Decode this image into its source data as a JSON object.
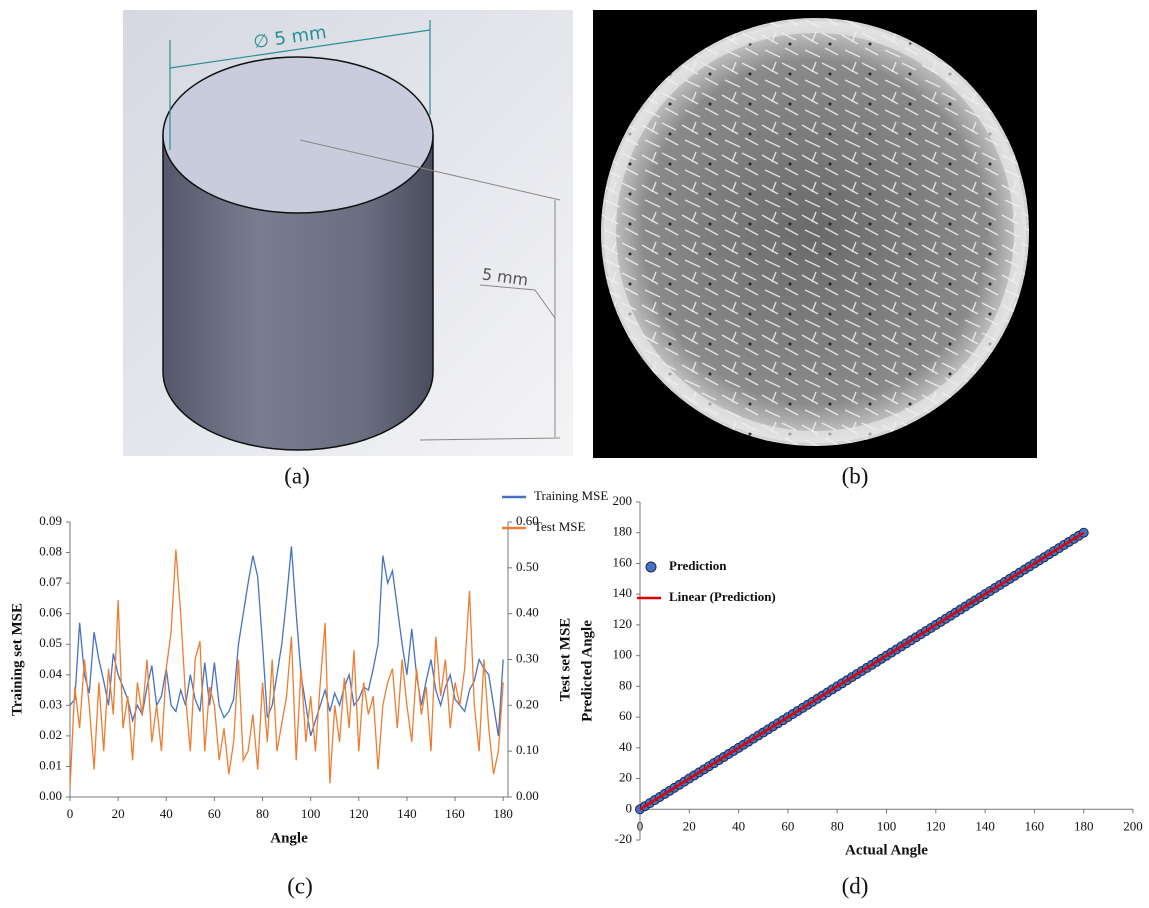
{
  "panels": [
    {
      "label": "(a)",
      "dimensions": [
        "∅ 5 mm",
        "5 mm"
      ]
    },
    {
      "label": "(b)"
    },
    {
      "label": "(c)"
    },
    {
      "label": "(d)"
    }
  ],
  "chart_data": [
    {
      "type": "line",
      "xlabel": "Angle",
      "ylabel": "Training set MSE",
      "y2label": "Test set MSE",
      "legend": "top-right",
      "xlim": [
        0,
        182
      ],
      "xticks": [
        0,
        20,
        40,
        60,
        80,
        100,
        120,
        140,
        160,
        180
      ],
      "ylim": [
        0,
        0.09
      ],
      "yticks": [
        {
          "value": 0,
          "label": "0.00"
        },
        {
          "value": 0.01,
          "label": "0.01"
        },
        {
          "value": 0.02,
          "label": "0.02"
        },
        {
          "value": 0.03,
          "label": "0.03"
        },
        {
          "value": 0.04,
          "label": "0.04"
        },
        {
          "value": 0.05,
          "label": "0.05"
        },
        {
          "value": 0.06,
          "label": "0.06"
        },
        {
          "value": 0.07,
          "label": "0.07"
        },
        {
          "value": 0.08,
          "label": "0.08"
        },
        {
          "value": 0.09,
          "label": "0.09"
        }
      ],
      "y2lim": [
        0,
        0.6
      ],
      "y2ticks": [
        {
          "value": 0,
          "label": "0.00"
        },
        {
          "value": 0.1,
          "label": "0.10"
        },
        {
          "value": 0.2,
          "label": "0.20"
        },
        {
          "value": 0.3,
          "label": "0.30"
        },
        {
          "value": 0.4,
          "label": "0.40"
        },
        {
          "value": 0.5,
          "label": "0.50"
        },
        {
          "value": 0.6,
          "label": "0.60"
        }
      ],
      "x": [
        0,
        2,
        4,
        6,
        8,
        10,
        12,
        14,
        16,
        18,
        20,
        22,
        24,
        26,
        28,
        30,
        32,
        34,
        36,
        38,
        40,
        42,
        44,
        46,
        48,
        50,
        52,
        54,
        56,
        58,
        60,
        62,
        64,
        66,
        68,
        70,
        72,
        74,
        76,
        78,
        80,
        82,
        84,
        86,
        88,
        90,
        92,
        94,
        96,
        98,
        100,
        102,
        104,
        106,
        108,
        110,
        112,
        114,
        116,
        118,
        120,
        122,
        124,
        126,
        128,
        130,
        132,
        134,
        136,
        138,
        140,
        142,
        144,
        146,
        148,
        150,
        152,
        154,
        156,
        158,
        160,
        162,
        164,
        166,
        168,
        170,
        172,
        174,
        176,
        178,
        180
      ],
      "series": [
        {
          "name": "Training MSE",
          "color": "#4472c4",
          "values": [
            0.03,
            0.032,
            0.057,
            0.04,
            0.034,
            0.054,
            0.045,
            0.038,
            0.03,
            0.047,
            0.04,
            0.036,
            0.032,
            0.025,
            0.03,
            0.027,
            0.036,
            0.043,
            0.03,
            0.033,
            0.042,
            0.03,
            0.028,
            0.035,
            0.03,
            0.04,
            0.032,
            0.028,
            0.044,
            0.03,
            0.044,
            0.03,
            0.026,
            0.028,
            0.032,
            0.05,
            0.06,
            0.07,
            0.079,
            0.072,
            0.05,
            0.026,
            0.03,
            0.04,
            0.05,
            0.065,
            0.082,
            0.06,
            0.04,
            0.03,
            0.02,
            0.025,
            0.03,
            0.035,
            0.028,
            0.034,
            0.03,
            0.036,
            0.04,
            0.03,
            0.032,
            0.036,
            0.035,
            0.042,
            0.05,
            0.079,
            0.07,
            0.074,
            0.062,
            0.05,
            0.04,
            0.055,
            0.04,
            0.03,
            0.038,
            0.045,
            0.035,
            0.03,
            0.036,
            0.04,
            0.032,
            0.03,
            0.028,
            0.035,
            0.038,
            0.045,
            0.042,
            0.04,
            0.03,
            0.02,
            0.045
          ]
        },
        {
          "name": "Test MSE",
          "color": "#ed7d31",
          "axis": "y2",
          "values": [
            0.02,
            0.24,
            0.15,
            0.3,
            0.2,
            0.06,
            0.25,
            0.1,
            0.28,
            0.18,
            0.43,
            0.15,
            0.22,
            0.08,
            0.25,
            0.18,
            0.3,
            0.12,
            0.2,
            0.1,
            0.28,
            0.36,
            0.54,
            0.4,
            0.22,
            0.1,
            0.3,
            0.34,
            0.1,
            0.24,
            0.2,
            0.08,
            0.15,
            0.05,
            0.12,
            0.3,
            0.08,
            0.1,
            0.18,
            0.06,
            0.25,
            0.12,
            0.3,
            0.1,
            0.16,
            0.22,
            0.35,
            0.08,
            0.28,
            0.12,
            0.22,
            0.1,
            0.25,
            0.38,
            0.03,
            0.2,
            0.12,
            0.26,
            0.15,
            0.32,
            0.1,
            0.25,
            0.18,
            0.22,
            0.06,
            0.2,
            0.25,
            0.28,
            0.15,
            0.3,
            0.2,
            0.12,
            0.28,
            0.18,
            0.24,
            0.1,
            0.35,
            0.22,
            0.3,
            0.15,
            0.25,
            0.2,
            0.28,
            0.45,
            0.2,
            0.1,
            0.3,
            0.15,
            0.05,
            0.1,
            0.25
          ]
        }
      ]
    },
    {
      "type": "scatter",
      "xlabel": "Actual Angle",
      "ylabel": "Predicted Angle",
      "legend": "top-left",
      "xlim": [
        0,
        200
      ],
      "xticks": [
        0,
        20,
        40,
        60,
        80,
        100,
        120,
        140,
        160,
        180,
        200
      ],
      "ylim": [
        -20,
        200
      ],
      "yticks": [
        -20,
        0,
        20,
        40,
        60,
        80,
        100,
        120,
        140,
        160,
        180,
        200
      ],
      "series": [
        {
          "name": "Prediction",
          "color": "#4472c4",
          "x": [
            0,
            2,
            4,
            6,
            8,
            10,
            12,
            14,
            16,
            18,
            20,
            22,
            24,
            26,
            28,
            30,
            32,
            34,
            36,
            38,
            40,
            42,
            44,
            46,
            48,
            50,
            52,
            54,
            56,
            58,
            60,
            62,
            64,
            66,
            68,
            70,
            72,
            74,
            76,
            78,
            80,
            82,
            84,
            86,
            88,
            90,
            92,
            94,
            96,
            98,
            100,
            102,
            104,
            106,
            108,
            110,
            112,
            114,
            116,
            118,
            120,
            122,
            124,
            126,
            128,
            130,
            132,
            134,
            136,
            138,
            140,
            142,
            144,
            146,
            148,
            150,
            152,
            154,
            156,
            158,
            160,
            162,
            164,
            166,
            168,
            170,
            172,
            174,
            176,
            178,
            180
          ],
          "values": [
            0,
            2,
            4,
            6,
            8,
            10,
            12,
            14,
            16,
            18,
            20,
            22,
            24,
            26,
            28,
            30,
            32,
            34,
            36,
            38,
            40,
            42,
            44,
            46,
            48,
            50,
            52,
            54,
            56,
            58,
            60,
            62,
            64,
            66,
            68,
            70,
            72,
            74,
            76,
            78,
            80,
            82,
            84,
            86,
            88,
            90,
            92,
            94,
            96,
            98,
            100,
            102,
            104,
            106,
            108,
            110,
            112,
            114,
            116,
            118,
            120,
            122,
            124,
            126,
            128,
            130,
            132,
            134,
            136,
            138,
            140,
            142,
            144,
            146,
            148,
            150,
            152,
            154,
            156,
            158,
            160,
            162,
            164,
            166,
            168,
            170,
            172,
            174,
            176,
            178,
            180
          ]
        },
        {
          "name": "Linear (Prediction)",
          "color": "#e00000",
          "type": "line",
          "x": [
            0,
            180
          ],
          "values": [
            0,
            180
          ]
        }
      ]
    }
  ]
}
